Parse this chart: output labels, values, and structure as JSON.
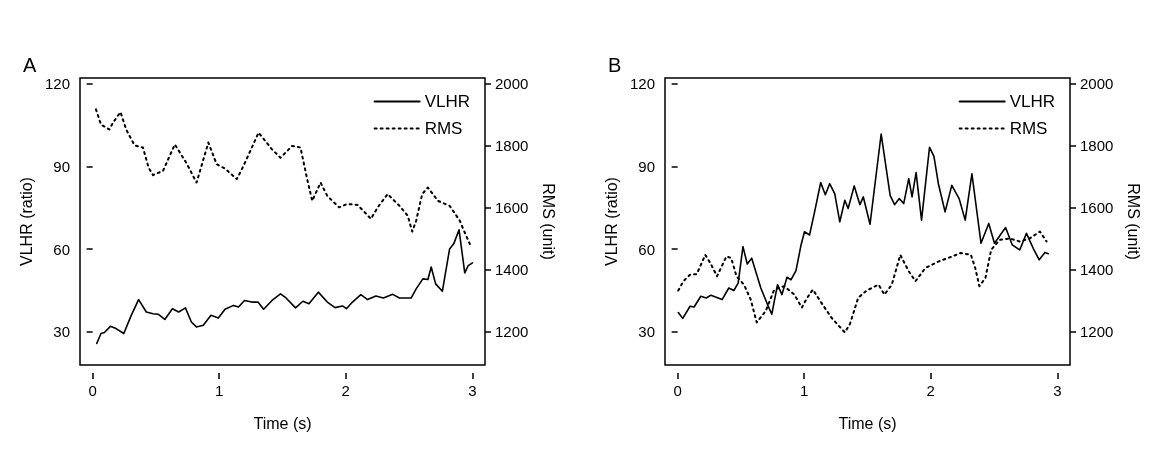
{
  "chart_data": [
    {
      "type": "line",
      "title": "A",
      "xlabel": "Time (s)",
      "ylabel": "VLHR (ratio)",
      "y2label": "RMS (unit)",
      "xlim": [
        -0.1,
        3.1
      ],
      "xticks": [
        0,
        1,
        2,
        3
      ],
      "ylim": [
        18,
        122
      ],
      "yticks": [
        30,
        60,
        90,
        120
      ],
      "y2lim": [
        1093,
        2018
      ],
      "y2ticks": [
        1200,
        1400,
        1600,
        1800,
        2000
      ],
      "legend": "top right",
      "grid": false,
      "marker": "none",
      "series": [
        {
          "name": "VLHR",
          "color": "#000000",
          "line_style": "solid",
          "x": [
            0.032,
            0.066,
            0.093,
            0.14,
            0.185,
            0.246,
            0.305,
            0.363,
            0.424,
            0.477,
            0.517,
            0.57,
            0.63,
            0.68,
            0.733,
            0.78,
            0.82,
            0.874,
            0.935,
            0.993,
            1.046,
            1.113,
            1.152,
            1.2,
            1.258,
            1.306,
            1.351,
            1.417,
            1.484,
            1.528,
            1.603,
            1.661,
            1.709,
            1.783,
            1.854,
            1.915,
            1.974,
            2.005,
            2.053,
            2.119,
            2.172,
            2.238,
            2.297,
            2.371,
            2.424,
            2.517,
            2.556,
            2.609,
            2.649,
            2.675,
            2.71,
            2.763,
            2.82,
            2.853,
            2.895,
            2.94,
            2.967,
            3.001
          ],
          "values": [
            25.8,
            29.4,
            29.8,
            32,
            31.2,
            29.4,
            36,
            41.7,
            37.2,
            36.6,
            36.4,
            34.5,
            38.4,
            37.2,
            38.7,
            33.6,
            31.8,
            32.4,
            36,
            35,
            38.2,
            39.6,
            39,
            41.4,
            40.8,
            40.8,
            38.2,
            41.4,
            43.8,
            42.3,
            38.7,
            41.1,
            40.2,
            44.4,
            40.8,
            38.8,
            39.4,
            38.4,
            40.8,
            43.5,
            41.7,
            43,
            42.3,
            43.6,
            42.3,
            42.3,
            45.6,
            49.2,
            49,
            53.5,
            47.4,
            44.7,
            60,
            61.9,
            67,
            51.4,
            54,
            55
          ]
        },
        {
          "name": "RMS",
          "color": "#000000",
          "line_style": "dotted",
          "axis": "y2",
          "x": [
            0.026,
            0.066,
            0.132,
            0.159,
            0.22,
            0.265,
            0.331,
            0.397,
            0.442,
            0.477,
            0.556,
            0.649,
            0.689,
            0.742,
            0.821,
            0.914,
            0.98,
            1.046,
            1.139,
            1.192,
            1.311,
            1.417,
            1.484,
            1.576,
            1.642,
            1.695,
            1.735,
            1.801,
            1.854,
            1.947,
            2.013,
            2.093,
            2.199,
            2.252,
            2.331,
            2.424,
            2.49,
            2.525,
            2.556,
            2.604,
            2.649,
            2.728,
            2.821,
            2.901,
            2.927,
            2.98
          ],
          "values": [
            1917,
            1868,
            1852,
            1873,
            1908,
            1852,
            1801,
            1794,
            1729,
            1705,
            1719,
            1804,
            1778,
            1743,
            1681,
            1810,
            1740,
            1726,
            1692,
            1735,
            1842,
            1788,
            1761,
            1799,
            1794,
            1692,
            1622,
            1681,
            1638,
            1601,
            1612,
            1609,
            1564,
            1601,
            1644,
            1606,
            1574,
            1523,
            1558,
            1644,
            1665,
            1622,
            1606,
            1558,
            1532,
            1483
          ]
        }
      ]
    },
    {
      "type": "line",
      "title": "B",
      "xlabel": "Time (s)",
      "ylabel": "VLHR (ratio)",
      "y2label": "RMS (unit)",
      "xlim": [
        -0.1,
        3.1
      ],
      "xticks": [
        0,
        1,
        2,
        3
      ],
      "ylim": [
        18,
        122
      ],
      "yticks": [
        30,
        60,
        90,
        120
      ],
      "y2lim": [
        1093,
        2018
      ],
      "y2ticks": [
        1200,
        1400,
        1600,
        1800,
        2000
      ],
      "legend": "top right",
      "grid": false,
      "marker": "none",
      "series": [
        {
          "name": "VLHR",
          "color": "#000000",
          "line_style": "solid",
          "x": [
            0.005,
            0.04,
            0.098,
            0.13,
            0.183,
            0.226,
            0.263,
            0.351,
            0.404,
            0.444,
            0.478,
            0.516,
            0.55,
            0.585,
            0.657,
            0.71,
            0.744,
            0.789,
            0.824,
            0.864,
            0.896,
            0.935,
            0.975,
            1.002,
            1.042,
            1.082,
            1.13,
            1.167,
            1.201,
            1.241,
            1.281,
            1.321,
            1.347,
            1.395,
            1.44,
            1.467,
            1.52,
            1.608,
            1.679,
            1.714,
            1.751,
            1.786,
            1.826,
            1.852,
            1.884,
            1.927,
            1.99,
            2.025,
            2.06,
            2.113,
            2.166,
            2.224,
            2.272,
            2.325,
            2.397,
            2.458,
            2.503,
            2.591,
            2.644,
            2.703,
            2.756,
            2.809,
            2.857,
            2.902,
            2.928
          ],
          "values": [
            37,
            34.9,
            39.3,
            39,
            42.9,
            42.3,
            43.3,
            41.7,
            45.9,
            45,
            47.7,
            60.9,
            54.6,
            56.7,
            45.9,
            39.9,
            36.4,
            47.1,
            43.5,
            49.8,
            48.9,
            52.2,
            61.5,
            66.3,
            65.1,
            73.5,
            84.1,
            79.7,
            83.7,
            80.1,
            69.9,
            77.7,
            74.7,
            82.9,
            76.1,
            78.9,
            69,
            101.7,
            79.5,
            76.1,
            78.3,
            76.5,
            85.5,
            78.9,
            87.7,
            70.5,
            96.9,
            93.6,
            83.7,
            73.5,
            83.1,
            78.3,
            70.5,
            87.3,
            62.1,
            69.3,
            62.1,
            67.8,
            61.5,
            59.7,
            65.7,
            60.3,
            56.1,
            58.8,
            58.3
          ]
        },
        {
          "name": "RMS",
          "color": "#000000",
          "line_style": "dotted",
          "axis": "y2",
          "x": [
            0.005,
            0.045,
            0.098,
            0.151,
            0.218,
            0.258,
            0.311,
            0.385,
            0.423,
            0.465,
            0.524,
            0.577,
            0.625,
            0.696,
            0.763,
            0.842,
            0.922,
            0.981,
            1.015,
            1.068,
            1.135,
            1.214,
            1.321,
            1.361,
            1.427,
            1.494,
            1.587,
            1.634,
            1.692,
            1.759,
            1.826,
            1.879,
            1.958,
            2.064,
            2.17,
            2.237,
            2.317,
            2.351,
            2.384,
            2.432,
            2.477,
            2.543,
            2.623,
            2.703,
            2.782,
            2.862,
            2.915
          ],
          "values": [
            1333,
            1363,
            1384,
            1386,
            1448,
            1422,
            1379,
            1443,
            1438,
            1379,
            1352,
            1304,
            1230,
            1267,
            1336,
            1347,
            1320,
            1278,
            1304,
            1336,
            1294,
            1246,
            1198,
            1225,
            1310,
            1333,
            1352,
            1320,
            1352,
            1448,
            1395,
            1363,
            1406,
            1427,
            1443,
            1454,
            1448,
            1406,
            1347,
            1374,
            1464,
            1496,
            1501,
            1491,
            1501,
            1523,
            1491
          ]
        }
      ]
    }
  ]
}
